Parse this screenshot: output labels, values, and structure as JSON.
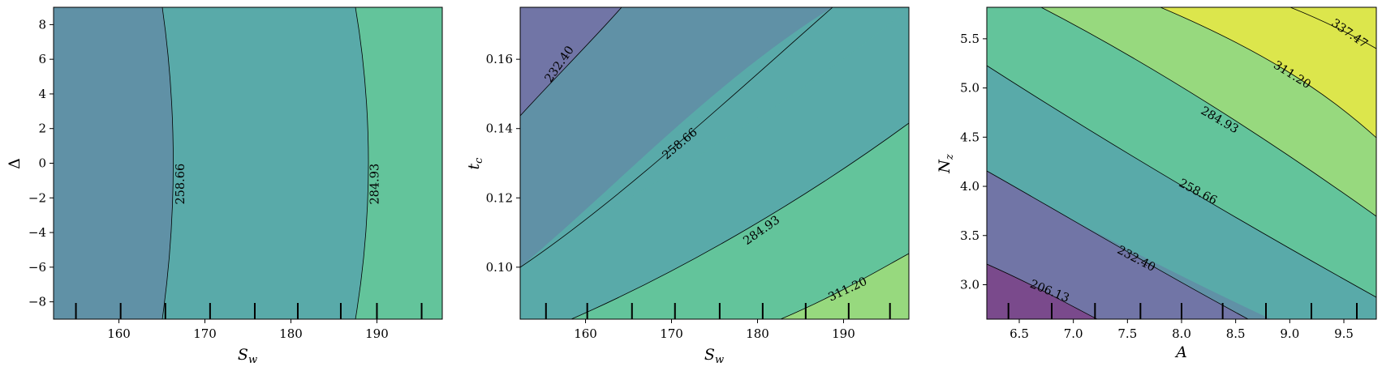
{
  "chart_data": [
    {
      "type": "contour",
      "xlabel": "S_w",
      "ylabel": "Δ",
      "xlim": [
        152.4,
        197.6
      ],
      "ylim": [
        -9,
        9
      ],
      "xticks": [
        160,
        170,
        180,
        190
      ],
      "yticks": [
        -8,
        -6,
        -4,
        -2,
        0,
        2,
        4,
        6,
        8
      ],
      "ytick_labels": [
        "−8",
        "−6",
        "−4",
        "−2",
        "0",
        "2",
        "4",
        "6",
        "8"
      ],
      "rug": [
        155.0,
        160.2,
        165.4,
        170.6,
        175.8,
        180.8,
        185.8,
        190.0,
        195.2
      ],
      "levels": [
        206.13,
        232.4,
        258.66,
        284.93,
        311.2,
        337.47
      ],
      "contour_labels": [
        {
          "text": "258.66",
          "x": 167.2,
          "y": -1.2,
          "angle": -90
        },
        {
          "text": "284.93",
          "x": 189.8,
          "y": -1.2,
          "angle": -90
        }
      ]
    },
    {
      "type": "contour",
      "xlabel": "S_w",
      "ylabel": "t_c",
      "xlim": [
        152.4,
        197.6
      ],
      "ylim": [
        0.085,
        0.175
      ],
      "xticks": [
        160,
        170,
        180,
        190
      ],
      "yticks": [
        0.1,
        0.12,
        0.14,
        0.16
      ],
      "ytick_labels": [
        "0.10",
        "0.12",
        "0.14",
        "0.16"
      ],
      "rug": [
        155.4,
        160.2,
        165.4,
        170.4,
        175.6,
        180.6,
        185.6,
        190.6,
        195.4
      ],
      "levels": [
        206.13,
        232.4,
        258.66,
        284.93,
        311.2,
        337.47
      ],
      "contour_labels": [
        {
          "text": "232.40",
          "x": 157.0,
          "y": 0.1585,
          "angle": -55
        },
        {
          "text": "258.66",
          "x": 171.0,
          "y": 0.1355,
          "angle": -40
        },
        {
          "text": "284.93",
          "x": 180.5,
          "y": 0.1105,
          "angle": -35
        },
        {
          "text": "311.20",
          "x": 190.5,
          "y": 0.0935,
          "angle": -25
        }
      ]
    },
    {
      "type": "contour",
      "xlabel": "A",
      "ylabel": "N_z",
      "xlim": [
        6.2,
        9.8
      ],
      "ylim": [
        2.65,
        5.82
      ],
      "xticks": [
        6.5,
        7.0,
        7.5,
        8.0,
        8.5,
        9.0,
        9.5
      ],
      "yticks": [
        3.0,
        3.5,
        4.0,
        4.5,
        5.0,
        5.5
      ],
      "ytick_labels": [
        "3.0",
        "3.5",
        "4.0",
        "4.5",
        "5.0",
        "5.5"
      ],
      "rug": [
        6.4,
        6.8,
        7.2,
        7.62,
        8.0,
        8.38,
        8.78,
        9.2,
        9.62
      ],
      "levels": [
        206.13,
        232.4,
        258.66,
        284.93,
        311.2,
        337.47
      ],
      "contour_labels": [
        {
          "text": "206.13",
          "x": 6.78,
          "y": 2.93,
          "angle": 22
        },
        {
          "text": "232.40",
          "x": 7.58,
          "y": 3.26,
          "angle": 28
        },
        {
          "text": "258.66",
          "x": 8.15,
          "y": 3.94,
          "angle": 28
        },
        {
          "text": "284.93",
          "x": 8.35,
          "y": 4.67,
          "angle": 30
        },
        {
          "text": "311.20",
          "x": 9.02,
          "y": 5.13,
          "angle": 32
        },
        {
          "text": "337.47",
          "x": 9.55,
          "y": 5.55,
          "angle": 35
        }
      ]
    }
  ],
  "colors": {
    "band_below_206": "#7a4a8c",
    "band_206_232": "#7175a6",
    "band_232_258": "#6091a6",
    "band_258_284": "#59aaa9",
    "band_284_311": "#63c49b",
    "band_311_337": "#97d97e",
    "band_above_337": "#dce64c",
    "line": "#000000"
  }
}
